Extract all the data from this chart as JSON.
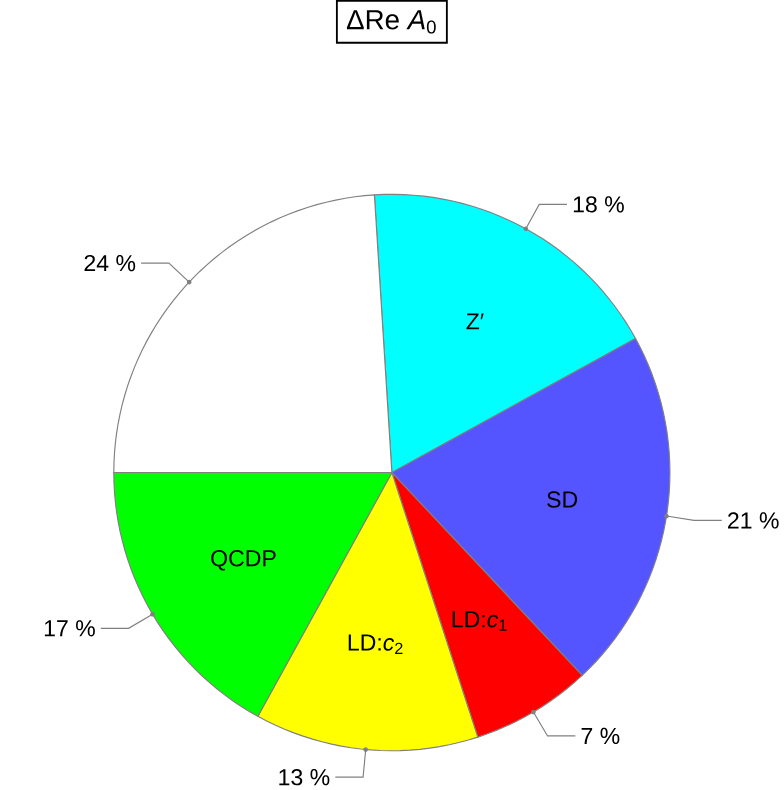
{
  "chart_data": {
    "type": "pie",
    "title": "ΔRe *A*$_{0}$",
    "categories": [
      "Z′",
      "SD",
      "LD:*c*$_{1}$",
      "LD:*c*$_{2}$",
      "QCDP",
      null
    ],
    "values": [
      18,
      21,
      7,
      13,
      17,
      24
    ],
    "colors": [
      "#00ffff",
      "#5555ff",
      "#ff0000",
      "#ffff00",
      "#00ff00",
      "#ffffff"
    ],
    "value_labels": [
      "18 %",
      "21 %",
      "7 %",
      "13 %",
      "17 %",
      "24 %"
    ]
  }
}
